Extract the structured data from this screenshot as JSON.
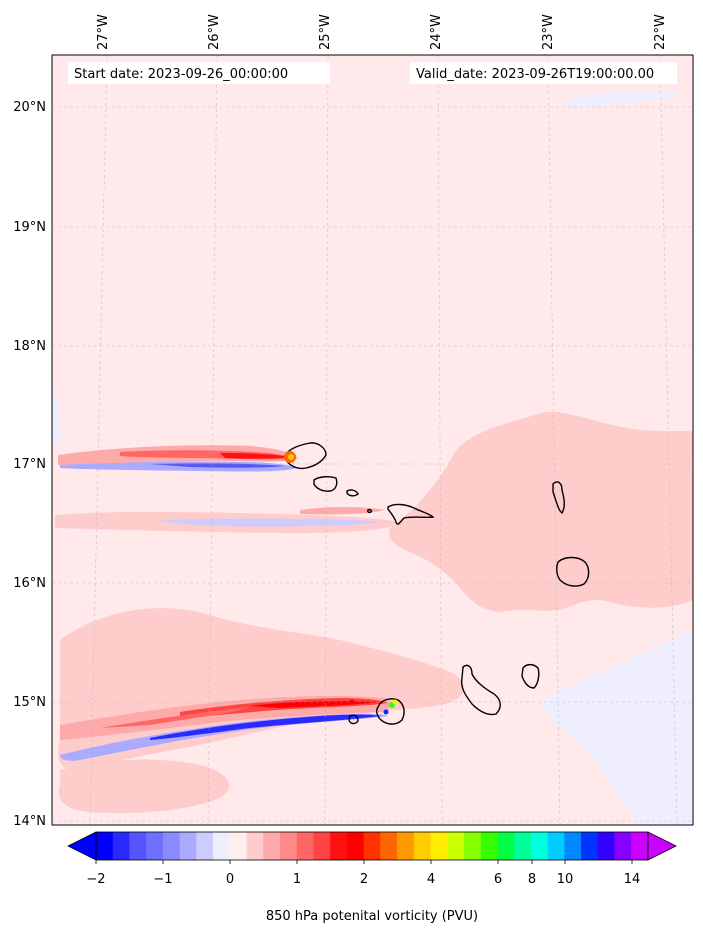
{
  "header": {
    "start_date": "Start date: 2023-09-26_00:00:00",
    "valid_date": "Valid_date: 2023-09-26T19:00:00.00"
  },
  "axes": {
    "lon_ticks": [
      "27°W",
      "26°W",
      "25°W",
      "24°W",
      "23°W",
      "22°W"
    ],
    "lat_ticks": [
      "20°N",
      "19°N",
      "18°N",
      "17°N",
      "16°N",
      "15°N",
      "14°N"
    ],
    "gridlines": true
  },
  "colorbar": {
    "label": "850 hPa potenital vorticity (PVU)",
    "tick_labels": [
      "−2",
      "−1",
      "0",
      "1",
      "2",
      "4",
      "6",
      "8",
      "10",
      "14"
    ],
    "colors": [
      "#0000ff",
      "#2a2aff",
      "#5555ff",
      "#7070ff",
      "#8a8aff",
      "#aaaaff",
      "#ccccff",
      "#eeeeff",
      "#ffeeee",
      "#ffcccc",
      "#ffaaaa",
      "#ff8a8a",
      "#ff6666",
      "#ff4444",
      "#ff1111",
      "#ff0000",
      "#ff3300",
      "#ff6600",
      "#ff9900",
      "#ffcc00",
      "#ffee00",
      "#ccff00",
      "#88ff00",
      "#33ff00",
      "#00ff44",
      "#00ff99",
      "#00ffdd",
      "#00ccff",
      "#0088ff",
      "#0033ff",
      "#3300ff",
      "#8800ff",
      "#cc00ff"
    ],
    "extend": "both"
  },
  "map": {
    "background_color": "#ffe9ea",
    "positive_band_color": "#ffcccc",
    "negative_band_color": "#eeeeff"
  }
}
